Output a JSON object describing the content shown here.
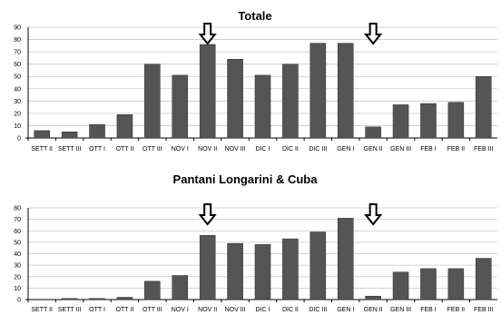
{
  "chart_data": [
    {
      "type": "bar",
      "title": "Totale",
      "categories": [
        "SETT II",
        "SETT III",
        "OTT I",
        "OTT II",
        "OTT III",
        "NOV I",
        "NOV II",
        "NOV III",
        "DIC I",
        "DIC II",
        "DIC III",
        "GEN I",
        "GEN II",
        "GEN III",
        "FEB I",
        "FEB II",
        "FEB III"
      ],
      "values": [
        6,
        5,
        11,
        19,
        60,
        51,
        76,
        64,
        51,
        60,
        77,
        77,
        9,
        27,
        28,
        29,
        50
      ],
      "ylim": [
        0,
        90
      ],
      "yticks": [
        0,
        10,
        20,
        30,
        40,
        50,
        60,
        70,
        80,
        90
      ],
      "grid": true,
      "arrows_at": [
        "NOV II",
        "GEN II"
      ]
    },
    {
      "type": "bar",
      "title": "Pantani Longarini & Cuba",
      "categories": [
        "SETT II",
        "SETT III",
        "OTT I",
        "OTT II",
        "OTT III",
        "NOV I",
        "NOV II",
        "NOV III",
        "DIC I",
        "DIC II",
        "DIC III",
        "GEN I",
        "GEN II",
        "GEN III",
        "FEB I",
        "FEB II",
        "FEB III"
      ],
      "values": [
        0,
        1,
        1,
        2,
        16,
        21,
        56,
        49,
        48,
        53,
        59,
        71,
        3,
        24,
        27,
        27,
        36
      ],
      "ylim": [
        0,
        80
      ],
      "yticks": [
        0,
        10,
        20,
        30,
        40,
        50,
        60,
        70,
        80
      ],
      "grid": true,
      "arrows_at": [
        "NOV II",
        "GEN II"
      ]
    }
  ],
  "colors": {
    "bar": "#555555",
    "grid": "#c8c8c8",
    "axis": "#000000"
  }
}
